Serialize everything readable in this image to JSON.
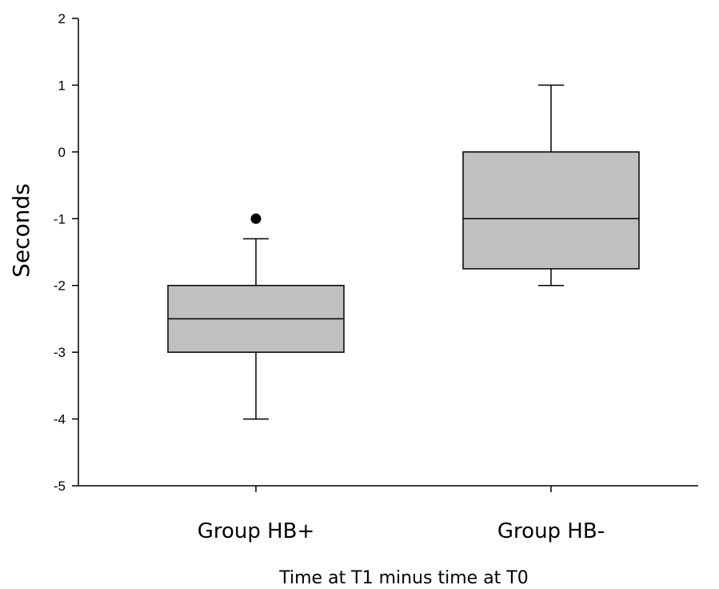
{
  "chart_data": {
    "type": "box",
    "title": "",
    "xlabel": "Time at T1 minus time at T0",
    "ylabel": "Seconds",
    "ylim": [
      -5,
      2
    ],
    "yticks": [
      2,
      1,
      0,
      -1,
      -2,
      -3,
      -4,
      -5
    ],
    "categories": [
      "Group HB+",
      "Group HB-"
    ],
    "boxes": [
      {
        "category": "Group HB+",
        "whisker_low": -4,
        "q1": -3,
        "median": -2.5,
        "q3": -2,
        "whisker_high": -1.3,
        "outliers": [
          -1
        ]
      },
      {
        "category": "Group HB-",
        "whisker_low": -2,
        "q1": -1.75,
        "median": -1,
        "q3": 0,
        "whisker_high": 1,
        "outliers": []
      }
    ],
    "box_fill": "#c0c0c0",
    "grid": false
  }
}
